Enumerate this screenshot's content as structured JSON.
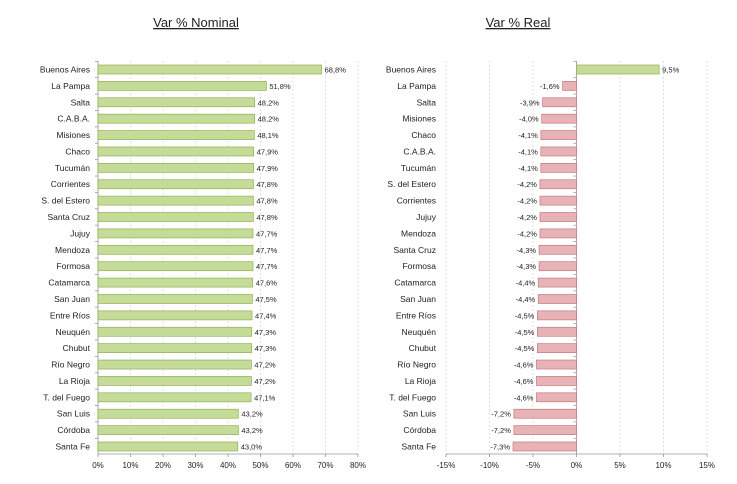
{
  "chart_data": [
    {
      "type": "bar",
      "orientation": "horizontal",
      "title": "Var % Nominal",
      "xlabel": "",
      "ylabel": "",
      "xlim": [
        0,
        80
      ],
      "xticks": [
        0,
        10,
        20,
        30,
        40,
        50,
        60,
        70,
        80
      ],
      "tick_suffix": "%",
      "value_format": "comma-1dp-percent",
      "grid": true,
      "legend": "none",
      "positive_color": "#c5dc98",
      "positive_border": "#8fb154",
      "negative_color": "#e8b3b6",
      "negative_border": "#c4787d",
      "categories": [
        "Buenos Aires",
        "La Pampa",
        "Salta",
        "C.A.B.A.",
        "Misiones",
        "Chaco",
        "Tucumán",
        "Corrientes",
        "S. del Estero",
        "Santa Cruz",
        "Jujuy",
        "Mendoza",
        "Formosa",
        "Catamarca",
        "San Juan",
        "Entre Ríos",
        "Neuquén",
        "Chubut",
        "Río Negro",
        "La Rioja",
        "T. del Fuego",
        "San Luis",
        "Córdoba",
        "Santa Fe"
      ],
      "values": [
        68.8,
        51.8,
        48.2,
        48.2,
        48.1,
        47.9,
        47.9,
        47.8,
        47.8,
        47.8,
        47.7,
        47.7,
        47.7,
        47.6,
        47.5,
        47.4,
        47.3,
        47.3,
        47.2,
        47.2,
        47.1,
        43.2,
        43.2,
        43.0
      ]
    },
    {
      "type": "bar",
      "orientation": "horizontal",
      "title": "Var % Real",
      "xlabel": "",
      "ylabel": "",
      "xlim": [
        -15,
        15
      ],
      "xticks": [
        -15,
        -10,
        -5,
        0,
        5,
        10,
        15
      ],
      "tick_suffix": "%",
      "value_format": "comma-1dp-percent",
      "grid": true,
      "legend": "none",
      "positive_color": "#c5dc98",
      "positive_border": "#8fb154",
      "negative_color": "#e8b3b6",
      "negative_border": "#c4787d",
      "categories": [
        "Buenos Aires",
        "La Pampa",
        "Salta",
        "Misiones",
        "Chaco",
        "C.A.B.A.",
        "Tucumán",
        "S. del Estero",
        "Corrientes",
        "Jujuy",
        "Mendoza",
        "Santa Cruz",
        "Formosa",
        "Catamarca",
        "San Juan",
        "Entre Ríos",
        "Neuquén",
        "Chubut",
        "Río Negro",
        "La Rioja",
        "T. del Fuego",
        "San Luis",
        "Córdoba",
        "Santa Fe"
      ],
      "values": [
        9.5,
        -1.6,
        -3.9,
        -4.0,
        -4.1,
        -4.1,
        -4.1,
        -4.2,
        -4.2,
        -4.2,
        -4.2,
        -4.3,
        -4.3,
        -4.4,
        -4.4,
        -4.5,
        -4.5,
        -4.5,
        -4.6,
        -4.6,
        -4.6,
        -7.2,
        -7.2,
        -7.3
      ]
    }
  ]
}
